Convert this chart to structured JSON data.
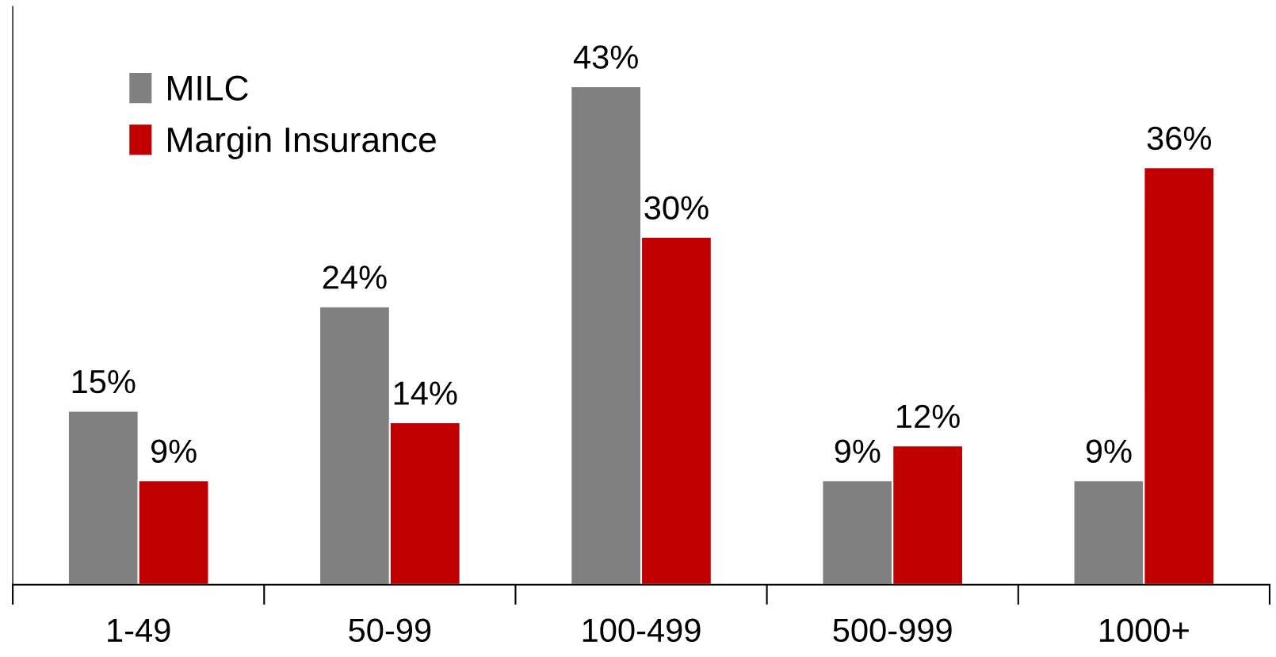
{
  "chart_data": {
    "type": "bar",
    "categories": [
      "1-49",
      "50-99",
      "100-499",
      "500-999",
      "1000+"
    ],
    "series": [
      {
        "name": "MILC",
        "color": "#808080",
        "values": [
          15,
          24,
          43,
          9,
          9
        ],
        "value_labels": [
          "15%",
          "24%",
          "43%",
          "9%",
          "9%"
        ]
      },
      {
        "name": "Margin Insurance",
        "color": "#c00000",
        "values": [
          9,
          14,
          30,
          12,
          36
        ],
        "value_labels": [
          "9%",
          "14%",
          "30%",
          "12%",
          "36%"
        ]
      }
    ],
    "legend": "top left",
    "tick_labels": "x"
  }
}
